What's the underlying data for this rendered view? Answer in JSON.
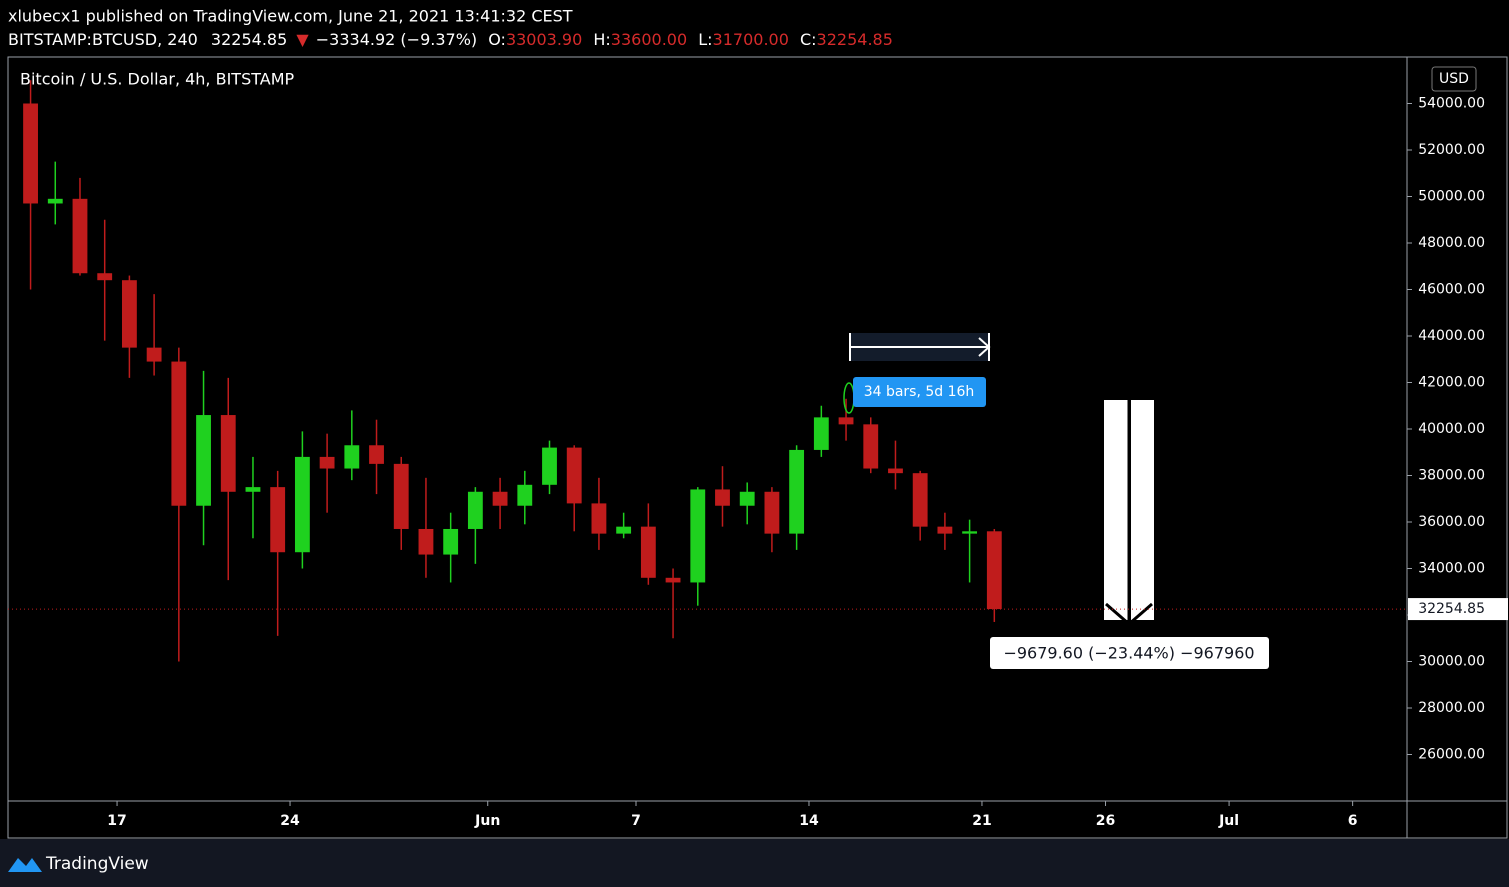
{
  "header": {
    "byline": "xlubecx1 published on TradingView.com, June 21, 2021 13:41:32 CEST",
    "symbol": "BITSTAMP:BTCUSD, 240",
    "last": "32254.85",
    "change": "−3334.92 (−9.37%)",
    "ohlc": [
      {
        "label": "O:",
        "value": "33003.90"
      },
      {
        "label": "H:",
        "value": "33600.00"
      },
      {
        "label": "L:",
        "value": "31700.00"
      },
      {
        "label": "C:",
        "value": "32254.85"
      }
    ]
  },
  "chart_data": {
    "type": "candlestick",
    "title": "Bitcoin / U.S. Dollar, 4h, BITSTAMP",
    "currency": "USD",
    "up_color": "#1fd11f",
    "down_color": "#c01c1c",
    "x": [
      -4,
      -3,
      -2,
      -1,
      0,
      1,
      2,
      3,
      4,
      5,
      6,
      7,
      8,
      9,
      10,
      11,
      12,
      13,
      14,
      15,
      16,
      17,
      18,
      19,
      20,
      21,
      22,
      23,
      24,
      25,
      26,
      27,
      28,
      29,
      30,
      31,
      32,
      33,
      34,
      35
    ],
    "open": [
      54000,
      49700,
      49900,
      46700,
      46400,
      43500,
      42900,
      36700,
      40600,
      37300,
      37500,
      34700,
      38800,
      38300,
      39300,
      38500,
      35700,
      34600,
      35700,
      37300,
      36700,
      37600,
      39200,
      36800,
      35500,
      35800,
      33600,
      33400,
      37400,
      36700,
      37300,
      35500,
      39100,
      40500,
      40200,
      38300,
      38100,
      35800,
      35500,
      35600
    ],
    "high": [
      55000,
      51500,
      50800,
      49000,
      46600,
      45800,
      43500,
      42500,
      42200,
      38800,
      38200,
      39900,
      39800,
      40800,
      40400,
      38800,
      37900,
      36400,
      37500,
      37900,
      38200,
      39500,
      39300,
      37900,
      36400,
      36800,
      34000,
      37500,
      38400,
      37700,
      37500,
      39300,
      41000,
      41300,
      40500,
      39500,
      38200,
      36400,
      36100,
      35700
    ],
    "low": [
      46000,
      48800,
      46600,
      43800,
      42200,
      42300,
      30000,
      35000,
      33500,
      35300,
      31100,
      34000,
      36400,
      37800,
      37200,
      34800,
      33600,
      33400,
      34200,
      35700,
      35900,
      37200,
      35600,
      34800,
      35300,
      33300,
      31000,
      32400,
      35800,
      35900,
      34700,
      34800,
      38800,
      39500,
      38100,
      37400,
      35200,
      34800,
      33400,
      31700
    ],
    "close": [
      49700,
      49900,
      46700,
      46400,
      43500,
      42900,
      36700,
      40600,
      37300,
      37500,
      34700,
      38800,
      38300,
      39300,
      38500,
      35700,
      34600,
      35700,
      37300,
      36700,
      37600,
      39200,
      36800,
      35500,
      35800,
      33600,
      33400,
      37400,
      36700,
      37300,
      35500,
      39100,
      40500,
      40200,
      38300,
      38100,
      35800,
      35500,
      35600,
      32254.85
    ],
    "last_price": 32254.85,
    "xlim": [
      -4.413,
      52.2
    ],
    "xticks": [
      {
        "value": 0,
        "label": "17"
      },
      {
        "value": 7,
        "label": "24"
      },
      {
        "value": 15,
        "label": "Jun"
      },
      {
        "value": 21,
        "label": "7"
      },
      {
        "value": 28,
        "label": "14"
      },
      {
        "value": 35,
        "label": "21"
      },
      {
        "value": 40,
        "label": "26"
      },
      {
        "value": 45,
        "label": "Jul"
      },
      {
        "value": 50,
        "label": "6"
      }
    ],
    "ylim": [
      24000,
      56000
    ],
    "yticks": [
      {
        "value": 26000,
        "label": "26000.00"
      },
      {
        "value": 28000,
        "label": "28000.00"
      },
      {
        "value": 30000,
        "label": "30000.00"
      },
      {
        "value": 32000,
        "label": "32000.00"
      },
      {
        "value": 34000,
        "label": "34000.00"
      },
      {
        "value": 36000,
        "label": "36000.00"
      },
      {
        "value": 38000,
        "label": "38000.00"
      },
      {
        "value": 40000,
        "label": "40000.00"
      },
      {
        "value": 42000,
        "label": "42000.00"
      },
      {
        "value": 44000,
        "label": "44000.00"
      },
      {
        "value": 46000,
        "label": "46000.00"
      },
      {
        "value": 48000,
        "label": "48000.00"
      },
      {
        "value": 50000,
        "label": "50000.00"
      },
      {
        "value": 52000,
        "label": "52000.00"
      },
      {
        "value": 54000,
        "label": "54000.00"
      }
    ],
    "annotations": {
      "bars_label": "34 bars, 5d 16h",
      "range_label": "−9679.60 (−23.44%) −967960"
    }
  },
  "footer": {
    "brand": "TradingView"
  }
}
